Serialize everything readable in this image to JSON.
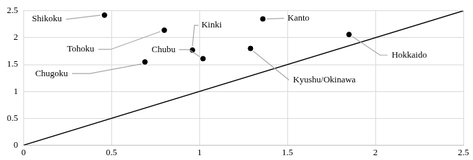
{
  "chart_data": {
    "type": "scatter",
    "points": [
      {
        "label": "Shikoku",
        "x": 0.46,
        "y": 2.42
      },
      {
        "label": "Tohoku",
        "x": 0.8,
        "y": 2.14
      },
      {
        "label": "Kinki",
        "x": 0.96,
        "y": 1.77
      },
      {
        "label": "Chubu",
        "x": 1.02,
        "y": 1.61
      },
      {
        "label": "Chugoku",
        "x": 0.69,
        "y": 1.55
      },
      {
        "label": "Kanto",
        "x": 1.36,
        "y": 2.35
      },
      {
        "label": "Kyushu/Okinawa",
        "x": 1.29,
        "y": 1.8
      },
      {
        "label": "Hokkaido",
        "x": 1.85,
        "y": 2.06
      }
    ],
    "reference_line": {
      "x": [
        0,
        2.5
      ],
      "y": [
        0,
        2.5
      ]
    },
    "color": "#000000",
    "xlim": [
      0,
      2.5
    ],
    "xticks": [
      0,
      0.5,
      1,
      1.5,
      2,
      2.5
    ],
    "ylim": [
      0,
      2.5
    ],
    "yticks": [
      0,
      0.5,
      1,
      1.5,
      2,
      2.5
    ],
    "grid": true
  }
}
